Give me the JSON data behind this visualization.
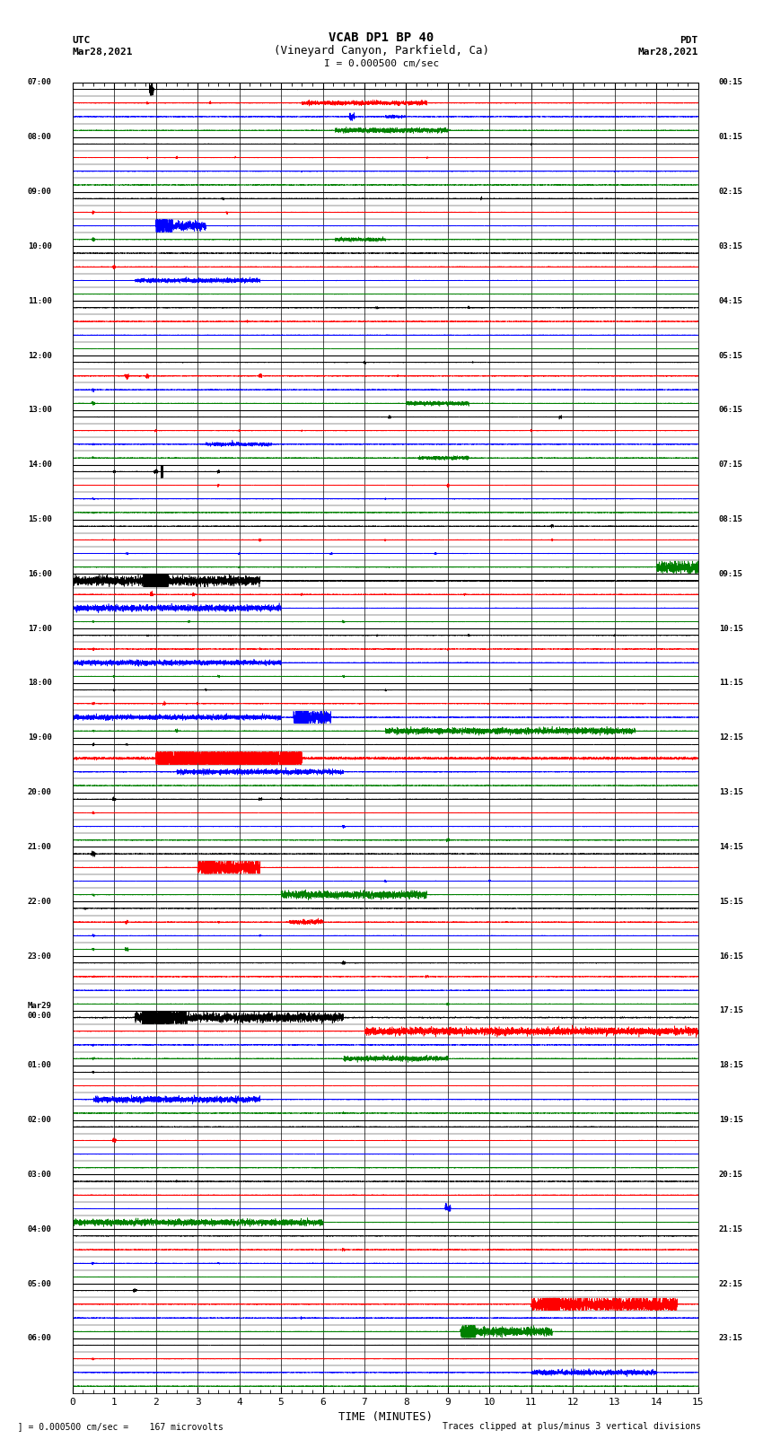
{
  "title_line1": "VCAB DP1 BP 40",
  "title_line2": "(Vineyard Canyon, Parkfield, Ca)",
  "scale_label": "I = 0.000500 cm/sec",
  "left_label_top": "UTC",
  "left_label_date": "Mar28,2021",
  "right_label_top": "PDT",
  "right_label_date": "Mar28,2021",
  "bottom_label": "TIME (MINUTES)",
  "footnote_left": "  ] = 0.000500 cm/sec =    167 microvolts",
  "footnote_right": "Traces clipped at plus/minus 3 vertical divisions",
  "utc_times": [
    "07:00",
    "08:00",
    "09:00",
    "10:00",
    "11:00",
    "12:00",
    "13:00",
    "14:00",
    "15:00",
    "16:00",
    "17:00",
    "18:00",
    "19:00",
    "20:00",
    "21:00",
    "22:00",
    "23:00",
    "Mar29\n00:00",
    "01:00",
    "02:00",
    "03:00",
    "04:00",
    "05:00",
    "06:00",
    ""
  ],
  "pdt_times": [
    "00:15",
    "01:15",
    "02:15",
    "03:15",
    "04:15",
    "05:15",
    "06:15",
    "07:15",
    "08:15",
    "09:15",
    "10:15",
    "11:15",
    "12:15",
    "13:15",
    "14:15",
    "15:15",
    "16:15",
    "17:15",
    "18:15",
    "19:15",
    "20:15",
    "21:15",
    "22:15",
    "23:15",
    ""
  ],
  "n_rows": 24,
  "fig_width": 8.5,
  "fig_height": 16.13,
  "bg_color": "#ffffff",
  "trace_colors": [
    "#000000",
    "#ff0000",
    "#0000ff",
    "#008000"
  ],
  "x_ticks": [
    0,
    1,
    2,
    3,
    4,
    5,
    6,
    7,
    8,
    9,
    10,
    11,
    12,
    13,
    14,
    15
  ]
}
